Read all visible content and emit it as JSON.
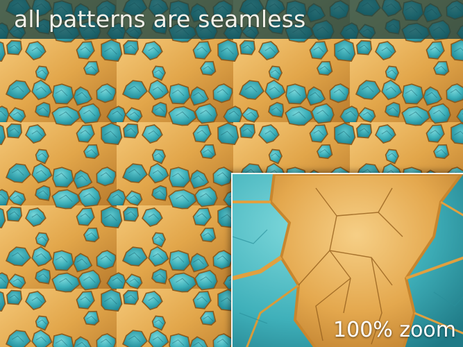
{
  "banner": {
    "title": "all patterns are seamless"
  },
  "zoom_inset": {
    "label": "100% zoom"
  },
  "colors": {
    "turquoise": "#34aab4",
    "turquoise_light": "#6fd2d6",
    "turquoise_dark": "#1a6f7a",
    "gold": "#e2a64a",
    "gold_light": "#f5c97a",
    "gold_dark": "#9a6420",
    "banner_overlay": "#12464e"
  },
  "content": {
    "pattern": "turquoise and gold crackle stone texture"
  }
}
